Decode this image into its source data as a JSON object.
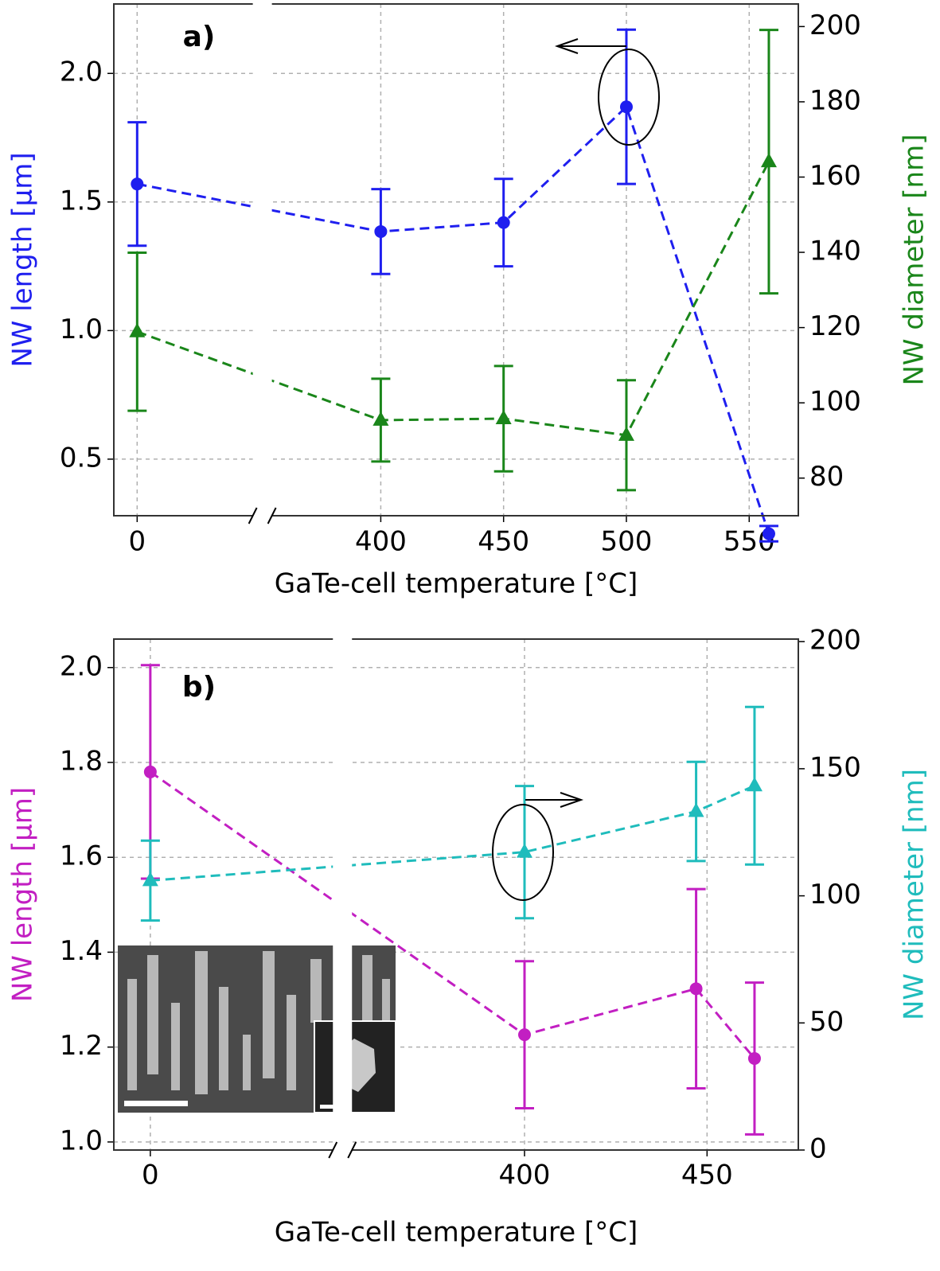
{
  "chart_data": [
    {
      "type": "line",
      "panel_label": "a)",
      "xlabel": "GaTe-cell temperature [°C]",
      "ylabel": "NW length [µm]",
      "y2label": "NW diameter [nm]",
      "x_break": true,
      "grid": true,
      "x": [
        0,
        400,
        450,
        500,
        558
      ],
      "xlim": [
        -9.5,
        570
      ],
      "xticks": [
        0,
        400,
        450,
        500,
        550
      ],
      "ylim": [
        0.28,
        2.27
      ],
      "yticks": [
        0.5,
        {
          "value": 1,
          "label": "1.0"
        },
        1.5,
        {
          "value": 2,
          "label": "2.0"
        }
      ],
      "y2lim": [
        70,
        206
      ],
      "y2ticks": [
        80,
        100,
        120,
        140,
        160,
        180,
        200
      ],
      "series": [
        {
          "name": "NW length",
          "color": "#1f1fef",
          "marker": "circle",
          "values": [
            1.57,
            1.385,
            1.42,
            1.87,
            0.21
          ],
          "errors": [
            0.24,
            0.165,
            0.17,
            0.3,
            0.03
          ]
        },
        {
          "name": "NW diameter",
          "color": "#1a861a",
          "marker": "triangle",
          "axis": "y2",
          "values": [
            118.9,
            95.4,
            95.8,
            91.4,
            164.1
          ],
          "errors": [
            21,
            11,
            14,
            14.6,
            35
          ]
        }
      ]
    },
    {
      "type": "line",
      "panel_label": "b)",
      "xlabel": "GaTe-cell temperature [°C]",
      "ylabel": "NW length [µm]",
      "y2label": "NW diameter [nm]",
      "x_break": true,
      "grid": true,
      "x": [
        0,
        400,
        447,
        463
      ],
      "xlim": [
        -10,
        475
      ],
      "xticks": [
        0,
        400,
        450
      ],
      "ylim": [
        0.983,
        2.06
      ],
      "yticks": [
        {
          "value": 1,
          "label": "1.0"
        },
        1.2,
        1.4,
        1.6,
        1.8,
        {
          "value": 2,
          "label": "2.0"
        }
      ],
      "y2lim": [
        0,
        201
      ],
      "y2ticks": [
        0,
        50,
        100,
        150,
        200
      ],
      "series": [
        {
          "name": "NW length",
          "color": "#c21fc2",
          "marker": "circle",
          "values": [
            1.78,
            1.226,
            1.323,
            1.176
          ],
          "errors": [
            0.225,
            0.155,
            0.21,
            0.16
          ]
        },
        {
          "name": "NW diameter",
          "color": "#1fbcbc",
          "marker": "triangle",
          "axis": "y2",
          "values": [
            106,
            117.2,
            133.2,
            143.3
          ],
          "errors": [
            15.7,
            26,
            19.5,
            31
          ]
        }
      ]
    }
  ]
}
